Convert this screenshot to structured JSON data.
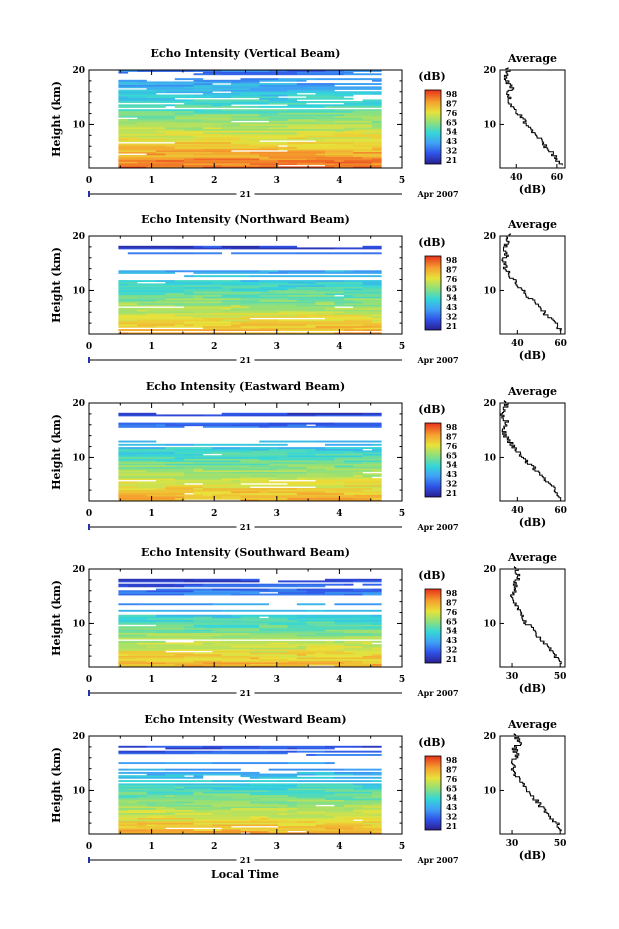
{
  "chart_data": [
    {
      "type": "heatmap",
      "title": "Echo Intensity (Vertical Beam)",
      "ylabel": "Height (km)",
      "ylim": [
        2,
        20
      ],
      "yticks": [
        20,
        10
      ],
      "xlim": [
        0,
        5
      ],
      "xticks": [
        0,
        1,
        2,
        3,
        4,
        5
      ],
      "date_center": "21",
      "date_right": "Apr 2007",
      "data_x_range": [
        0.47,
        4.67
      ],
      "colorbar": {
        "label": "(dB)",
        "ticks": [
          98,
          87,
          76,
          65,
          54,
          43,
          32,
          21
        ],
        "range": [
          21,
          98
        ]
      },
      "profile": {
        "title": "Average",
        "xlabel": "(dB)",
        "xticks": [
          40,
          60
        ],
        "xlim": [
          32,
          64
        ],
        "yticks": [
          20,
          10
        ],
        "ylim": [
          2,
          20
        ],
        "heights": [
          3,
          4,
          5,
          6,
          7,
          8,
          9,
          10,
          11,
          12,
          13,
          14,
          15,
          16,
          17,
          18,
          19,
          20
        ],
        "values": [
          62,
          60,
          58,
          55,
          53,
          51,
          48,
          46,
          44,
          42,
          39,
          37,
          37,
          36,
          38,
          36,
          35,
          36
        ]
      }
    },
    {
      "type": "heatmap",
      "title": "Echo Intensity (Northward Beam)",
      "ylabel": "Height (km)",
      "ylim": [
        2,
        20
      ],
      "yticks": [
        20,
        10
      ],
      "xlim": [
        0,
        5
      ],
      "xticks": [
        0,
        1,
        2,
        3,
        4,
        5
      ],
      "date_center": "21",
      "date_right": "Apr 2007",
      "data_x_range": [
        0.47,
        4.67
      ],
      "colorbar": {
        "label": "(dB)",
        "ticks": [
          98,
          87,
          76,
          65,
          54,
          43,
          32,
          21
        ],
        "range": [
          21,
          98
        ]
      },
      "profile": {
        "title": "Average",
        "xlabel": "(dB)",
        "xticks": [
          40,
          60
        ],
        "xlim": [
          32,
          62
        ],
        "yticks": [
          20,
          10
        ],
        "ylim": [
          2,
          20
        ],
        "heights": [
          3,
          4,
          5,
          6,
          7,
          8,
          9,
          10,
          11,
          12,
          13,
          14,
          15,
          16,
          17,
          18,
          19,
          20
        ],
        "values": [
          60,
          58,
          56,
          53,
          51,
          48,
          46,
          43,
          41,
          39,
          37,
          35,
          34,
          34,
          35,
          34,
          35,
          36
        ]
      }
    },
    {
      "type": "heatmap",
      "title": "Echo Intensity (Eastward Beam)",
      "ylabel": "Height (km)",
      "ylim": [
        2,
        20
      ],
      "yticks": [
        20,
        10
      ],
      "xlim": [
        0,
        5
      ],
      "xticks": [
        0,
        1,
        2,
        3,
        4,
        5
      ],
      "date_center": "21",
      "date_right": "Apr 2007",
      "data_x_range": [
        0.47,
        4.67
      ],
      "colorbar": {
        "label": "(dB)",
        "ticks": [
          98,
          87,
          76,
          65,
          54,
          43,
          32,
          21
        ],
        "range": [
          21,
          98
        ]
      },
      "profile": {
        "title": "Average",
        "xlabel": "(dB)",
        "xticks": [
          40,
          60
        ],
        "xlim": [
          32,
          62
        ],
        "yticks": [
          20,
          10
        ],
        "ylim": [
          2,
          20
        ],
        "heights": [
          3,
          4,
          5,
          6,
          7,
          8,
          9,
          10,
          11,
          12,
          13,
          14,
          15,
          16,
          17,
          18,
          19,
          20
        ],
        "values": [
          60,
          58,
          56,
          54,
          51,
          49,
          46,
          43,
          41,
          39,
          37,
          35,
          34,
          34,
          35,
          33,
          34,
          35
        ]
      }
    },
    {
      "type": "heatmap",
      "title": "Echo Intensity (Southward Beam)",
      "ylabel": "Height (km)",
      "ylim": [
        2,
        20
      ],
      "yticks": [
        20,
        10
      ],
      "xlim": [
        0,
        5
      ],
      "xticks": [
        0,
        1,
        2,
        3,
        4,
        5
      ],
      "date_center": "21",
      "date_right": "Apr 2007",
      "data_x_range": [
        0.47,
        4.67
      ],
      "colorbar": {
        "label": "(dB)",
        "ticks": [
          98,
          87,
          76,
          65,
          54,
          43,
          32,
          21
        ],
        "range": [
          21,
          98
        ]
      },
      "profile": {
        "title": "Average",
        "xlabel": "(dB)",
        "xticks": [
          30,
          50
        ],
        "xlim": [
          25,
          52
        ],
        "yticks": [
          20,
          10
        ],
        "ylim": [
          2,
          20
        ],
        "heights": [
          3,
          4,
          5,
          6,
          7,
          8,
          9,
          10,
          11,
          12,
          13,
          14,
          15,
          16,
          17,
          18,
          19,
          20
        ],
        "values": [
          50,
          49,
          47,
          45,
          43,
          41,
          39,
          37,
          35,
          34,
          32,
          31,
          30,
          31,
          32,
          31,
          33,
          32
        ]
      }
    },
    {
      "type": "heatmap",
      "title": "Echo Intensity (Westward Beam)",
      "ylabel": "Height (km)",
      "xlabel": "Local Time",
      "ylim": [
        2,
        20
      ],
      "yticks": [
        20,
        10
      ],
      "xlim": [
        0,
        5
      ],
      "xticks": [
        0,
        1,
        2,
        3,
        4,
        5
      ],
      "date_center": "21",
      "date_right": "Apr 2007",
      "data_x_range": [
        0.47,
        4.67
      ],
      "colorbar": {
        "label": "(dB)",
        "ticks": [
          98,
          87,
          76,
          65,
          54,
          43,
          32,
          21
        ],
        "range": [
          21,
          98
        ]
      },
      "profile": {
        "title": "Average",
        "xlabel": "(dB)",
        "xticks": [
          30,
          50
        ],
        "xlim": [
          25,
          52
        ],
        "yticks": [
          20,
          10
        ],
        "ylim": [
          2,
          20
        ],
        "heights": [
          3,
          4,
          5,
          6,
          7,
          8,
          9,
          10,
          11,
          12,
          13,
          14,
          15,
          16,
          17,
          18,
          19,
          20
        ],
        "values": [
          50,
          49,
          47,
          45,
          43,
          41,
          39,
          37,
          35,
          34,
          32,
          31,
          30,
          31,
          32,
          31,
          33,
          32
        ]
      }
    }
  ]
}
